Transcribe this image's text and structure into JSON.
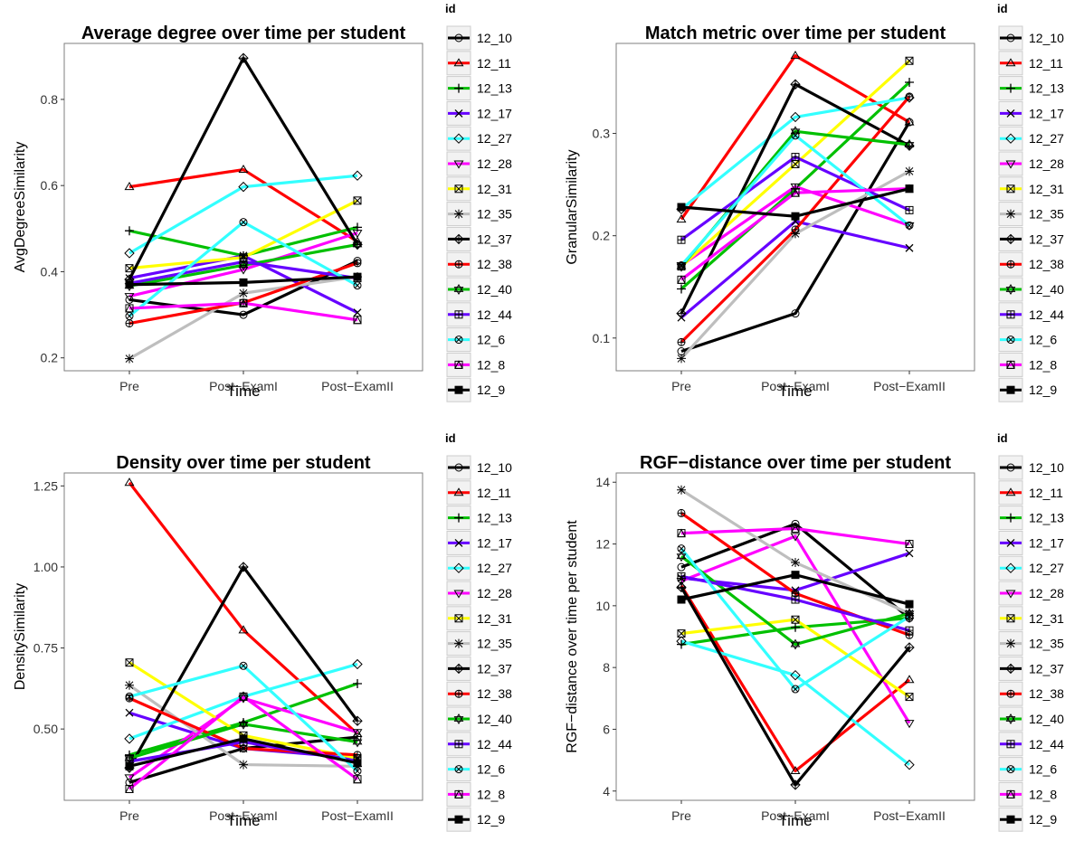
{
  "legend": {
    "title": "id",
    "entries": [
      {
        "id": "12_10",
        "color": "#000000",
        "shape": "circle"
      },
      {
        "id": "12_11",
        "color": "#ff0000",
        "shape": "triangle"
      },
      {
        "id": "12_13",
        "color": "#00c000",
        "shape": "plus"
      },
      {
        "id": "12_17",
        "color": "#6600ff",
        "shape": "cross"
      },
      {
        "id": "12_27",
        "color": "#33ffff",
        "shape": "diamond"
      },
      {
        "id": "12_28",
        "color": "#ff00ff",
        "shape": "down-triangle"
      },
      {
        "id": "12_31",
        "color": "#ffff00",
        "shape": "boxed-x"
      },
      {
        "id": "12_35",
        "color": "#bebebe",
        "shape": "star"
      },
      {
        "id": "12_37",
        "color": "#000000",
        "shape": "diamond-plus"
      },
      {
        "id": "12_38",
        "color": "#ff0000",
        "shape": "circle-plus"
      },
      {
        "id": "12_40",
        "color": "#00c000",
        "shape": "star-of-david"
      },
      {
        "id": "12_44",
        "color": "#6600ff",
        "shape": "square-plus"
      },
      {
        "id": "12_6",
        "color": "#33ffff",
        "shape": "circle-x"
      },
      {
        "id": "12_8",
        "color": "#ff00ff",
        "shape": "square-triangle"
      },
      {
        "id": "12_9",
        "color": "#000000",
        "shape": "filled-square"
      }
    ]
  },
  "chart_data": [
    {
      "type": "line",
      "title": "Average degree over time per student",
      "xlabel": "Time",
      "ylabel": "AvgDegreeSimilarity",
      "categories": [
        "Pre",
        "Post−ExamI",
        "Post−ExamII"
      ],
      "ylim": [
        0.17,
        0.93
      ],
      "yticks": [
        0.2,
        0.4,
        0.6,
        0.8
      ],
      "ytick_labels": [
        "0.2",
        "0.4",
        "0.6",
        "0.8"
      ],
      "grid": false,
      "legend_position": "right",
      "series": [
        {
          "name": "12_10",
          "values": [
            0.335,
            0.3,
            0.425
          ]
        },
        {
          "name": "12_11",
          "values": [
            0.597,
            0.637,
            0.47
          ]
        },
        {
          "name": "12_13",
          "values": [
            0.495,
            0.437,
            0.503
          ]
        },
        {
          "name": "12_17",
          "values": [
            0.385,
            0.437,
            0.305
          ]
        },
        {
          "name": "12_27",
          "values": [
            0.443,
            0.597,
            0.623
          ]
        },
        {
          "name": "12_28",
          "values": [
            0.343,
            0.405,
            0.49
          ]
        },
        {
          "name": "12_31",
          "values": [
            0.408,
            0.433,
            0.565
          ]
        },
        {
          "name": "12_35",
          "values": [
            0.198,
            0.35,
            0.388
          ]
        },
        {
          "name": "12_37",
          "values": [
            0.382,
            0.896,
            0.463
          ]
        },
        {
          "name": "12_38",
          "values": [
            0.28,
            0.328,
            0.42
          ]
        },
        {
          "name": "12_40",
          "values": [
            0.367,
            0.415,
            0.463
          ]
        },
        {
          "name": "12_44",
          "values": [
            0.373,
            0.423,
            0.385
          ]
        },
        {
          "name": "12_6",
          "values": [
            0.297,
            0.515,
            0.368
          ]
        },
        {
          "name": "12_8",
          "values": [
            0.315,
            0.327,
            0.288
          ]
        },
        {
          "name": "12_9",
          "values": [
            0.37,
            0.375,
            0.388
          ]
        }
      ]
    },
    {
      "type": "line",
      "title": "Match metric over time per student",
      "xlabel": "Time",
      "ylabel": "GranularSimilarity",
      "categories": [
        "Pre",
        "Post−ExamI",
        "Post−ExamII"
      ],
      "ylim": [
        0.068,
        0.388
      ],
      "yticks": [
        0.1,
        0.2,
        0.3
      ],
      "ytick_labels": [
        "0.1",
        "0.2",
        "0.3"
      ],
      "grid": false,
      "legend_position": "right",
      "series": [
        {
          "name": "12_10",
          "values": [
            0.087,
            0.124,
            0.311
          ]
        },
        {
          "name": "12_11",
          "values": [
            0.216,
            0.376,
            0.311
          ]
        },
        {
          "name": "12_13",
          "values": [
            0.148,
            0.246,
            0.35
          ]
        },
        {
          "name": "12_17",
          "values": [
            0.12,
            0.214,
            0.188
          ]
        },
        {
          "name": "12_27",
          "values": [
            0.226,
            0.316,
            0.335
          ]
        },
        {
          "name": "12_28",
          "values": [
            0.171,
            0.248,
            0.21
          ]
        },
        {
          "name": "12_31",
          "values": [
            0.17,
            0.27,
            0.371
          ]
        },
        {
          "name": "12_35",
          "values": [
            0.08,
            0.202,
            0.263
          ]
        },
        {
          "name": "12_37",
          "values": [
            0.124,
            0.348,
            0.288
          ]
        },
        {
          "name": "12_38",
          "values": [
            0.096,
            0.206,
            0.336
          ]
        },
        {
          "name": "12_40",
          "values": [
            0.17,
            0.302,
            0.289
          ]
        },
        {
          "name": "12_44",
          "values": [
            0.196,
            0.277,
            0.225
          ]
        },
        {
          "name": "12_6",
          "values": [
            0.171,
            0.298,
            0.21
          ]
        },
        {
          "name": "12_8",
          "values": [
            0.157,
            0.242,
            0.246
          ]
        },
        {
          "name": "12_9",
          "values": [
            0.228,
            0.219,
            0.246
          ]
        }
      ]
    },
    {
      "type": "line",
      "title": "Density over time per student",
      "xlabel": "Time",
      "ylabel": "DensitySimilarity",
      "categories": [
        "Pre",
        "Post−ExamI",
        "Post−ExamII"
      ],
      "ylim": [
        0.28,
        1.29
      ],
      "yticks": [
        0.5,
        0.75,
        1.0,
        1.25
      ],
      "ytick_labels": [
        "0.50",
        "0.75",
        "1.00",
        "1.25"
      ],
      "grid": false,
      "legend_position": "right",
      "series": [
        {
          "name": "12_10",
          "values": [
            0.335,
            0.44,
            0.475
          ]
        },
        {
          "name": "12_11",
          "values": [
            1.26,
            0.805,
            0.485
          ]
        },
        {
          "name": "12_13",
          "values": [
            0.42,
            0.52,
            0.64
          ]
        },
        {
          "name": "12_17",
          "values": [
            0.55,
            0.44,
            0.41
          ]
        },
        {
          "name": "12_27",
          "values": [
            0.47,
            0.6,
            0.7
          ]
        },
        {
          "name": "12_28",
          "values": [
            0.35,
            0.595,
            0.49
          ]
        },
        {
          "name": "12_31",
          "values": [
            0.705,
            0.48,
            0.41
          ]
        },
        {
          "name": "12_35",
          "values": [
            0.635,
            0.39,
            0.385
          ]
        },
        {
          "name": "12_37",
          "values": [
            0.38,
            1.0,
            0.525
          ]
        },
        {
          "name": "12_38",
          "values": [
            0.595,
            0.44,
            0.42
          ]
        },
        {
          "name": "12_40",
          "values": [
            0.41,
            0.515,
            0.46
          ]
        },
        {
          "name": "12_44",
          "values": [
            0.4,
            0.46,
            0.4
          ]
        },
        {
          "name": "12_6",
          "values": [
            0.6,
            0.695,
            0.37
          ]
        },
        {
          "name": "12_8",
          "values": [
            0.315,
            0.6,
            0.345
          ]
        },
        {
          "name": "12_9",
          "values": [
            0.385,
            0.47,
            0.395
          ]
        }
      ]
    },
    {
      "type": "line",
      "title": "RGF−distance over time per student",
      "xlabel": "Time",
      "ylabel": "RGF−distance over time per student",
      "categories": [
        "Pre",
        "Post−ExamI",
        "Post−ExamII"
      ],
      "ylim": [
        3.7,
        14.3
      ],
      "yticks": [
        4,
        6,
        8,
        10,
        12,
        14
      ],
      "ytick_labels": [
        "4",
        "6",
        "8",
        "10",
        "12",
        "14"
      ],
      "grid": false,
      "legend_position": "right",
      "series": [
        {
          "name": "12_10",
          "values": [
            11.25,
            12.65,
            9.6
          ]
        },
        {
          "name": "12_11",
          "values": [
            10.65,
            4.65,
            7.6
          ]
        },
        {
          "name": "12_13",
          "values": [
            8.75,
            9.3,
            9.6
          ]
        },
        {
          "name": "12_17",
          "values": [
            10.9,
            10.5,
            11.7
          ]
        },
        {
          "name": "12_27",
          "values": [
            8.85,
            7.75,
            4.85
          ]
        },
        {
          "name": "12_28",
          "values": [
            10.8,
            12.25,
            6.2
          ]
        },
        {
          "name": "12_31",
          "values": [
            9.1,
            9.55,
            7.05
          ]
        },
        {
          "name": "12_35",
          "values": [
            13.75,
            11.4,
            9.75
          ]
        },
        {
          "name": "12_37",
          "values": [
            10.6,
            4.2,
            8.65
          ]
        },
        {
          "name": "12_38",
          "values": [
            13.0,
            10.4,
            9.05
          ]
        },
        {
          "name": "12_40",
          "values": [
            11.6,
            8.75,
            9.75
          ]
        },
        {
          "name": "12_44",
          "values": [
            10.95,
            10.2,
            9.2
          ]
        },
        {
          "name": "12_6",
          "values": [
            11.85,
            7.3,
            9.65
          ]
        },
        {
          "name": "12_8",
          "values": [
            12.35,
            12.5,
            12.0
          ]
        },
        {
          "name": "12_9",
          "values": [
            10.2,
            11.0,
            10.05
          ]
        }
      ]
    }
  ]
}
